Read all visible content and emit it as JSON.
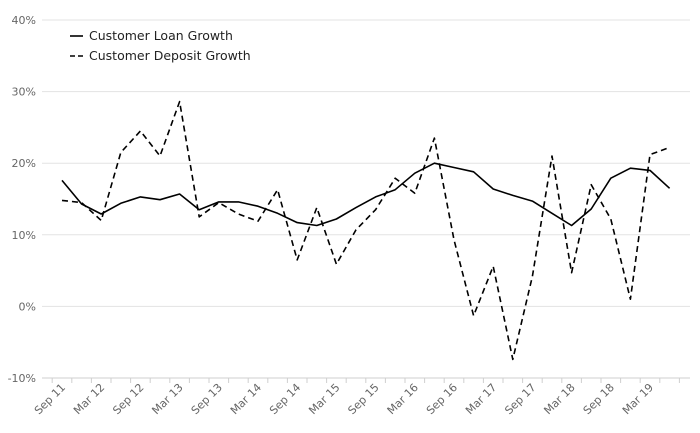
{
  "chart_data": {
    "type": "line",
    "title": "",
    "xlabel": "",
    "ylabel": "",
    "ylim": [
      -10,
      40
    ],
    "y_ticks": [
      -10,
      0,
      10,
      20,
      30,
      40
    ],
    "y_tick_labels": [
      "-10%",
      "0%",
      "10%",
      "20%",
      "30%",
      "40%"
    ],
    "grid": "horizontal",
    "legend": "top-left",
    "x_tick_labels": [
      "Sep 11",
      "Mar 12",
      "Sep 12",
      "Mar 13",
      "Sep 13",
      "Mar 14",
      "Sep 14",
      "Mar 15",
      "Sep 15",
      "Mar 16",
      "Sep 16",
      "Mar 17",
      "Sep 17",
      "Mar 18",
      "Sep 18",
      "Mar 19"
    ],
    "x": [
      "Sep 11",
      "Dec 11",
      "Mar 12",
      "Jun 12",
      "Sep 12",
      "Dec 12",
      "Mar 13",
      "Jun 13",
      "Sep 13",
      "Dec 13",
      "Mar 14",
      "Jun 14",
      "Sep 14",
      "Dec 14",
      "Mar 15",
      "Jun 15",
      "Sep 15",
      "Dec 15",
      "Mar 16",
      "Jun 16",
      "Sep 16",
      "Dec 16",
      "Mar 17",
      "Jun 17",
      "Sep 17",
      "Dec 17",
      "Mar 18",
      "Jun 18",
      "Sep 18",
      "Dec 18",
      "Mar 19",
      "Jun 19"
    ],
    "series": [
      {
        "name": "Customer Loan Growth",
        "style": "solid",
        "color": "#000000",
        "values": [
          17.6,
          14.3,
          12.9,
          14.4,
          15.3,
          14.9,
          15.7,
          13.5,
          14.6,
          14.6,
          14.0,
          13.0,
          11.7,
          11.3,
          12.2,
          13.8,
          15.3,
          16.3,
          18.6,
          20.0,
          19.4,
          18.8,
          16.4,
          15.5,
          14.7,
          13.0,
          11.3,
          13.6,
          17.9,
          19.3,
          19.0,
          16.5
        ]
      },
      {
        "name": "Customer Deposit Growth",
        "style": "dashed",
        "color": "#000000",
        "values": [
          14.8,
          14.5,
          12.0,
          21.5,
          24.5,
          21.0,
          28.6,
          12.5,
          14.5,
          12.9,
          11.9,
          16.3,
          6.5,
          13.8,
          5.9,
          10.7,
          13.5,
          17.9,
          15.8,
          23.5,
          9.3,
          -1.3,
          5.6,
          -7.4,
          4.2,
          21.0,
          4.7,
          17.0,
          12.2,
          1.0,
          21.2,
          22.2
        ]
      }
    ]
  }
}
